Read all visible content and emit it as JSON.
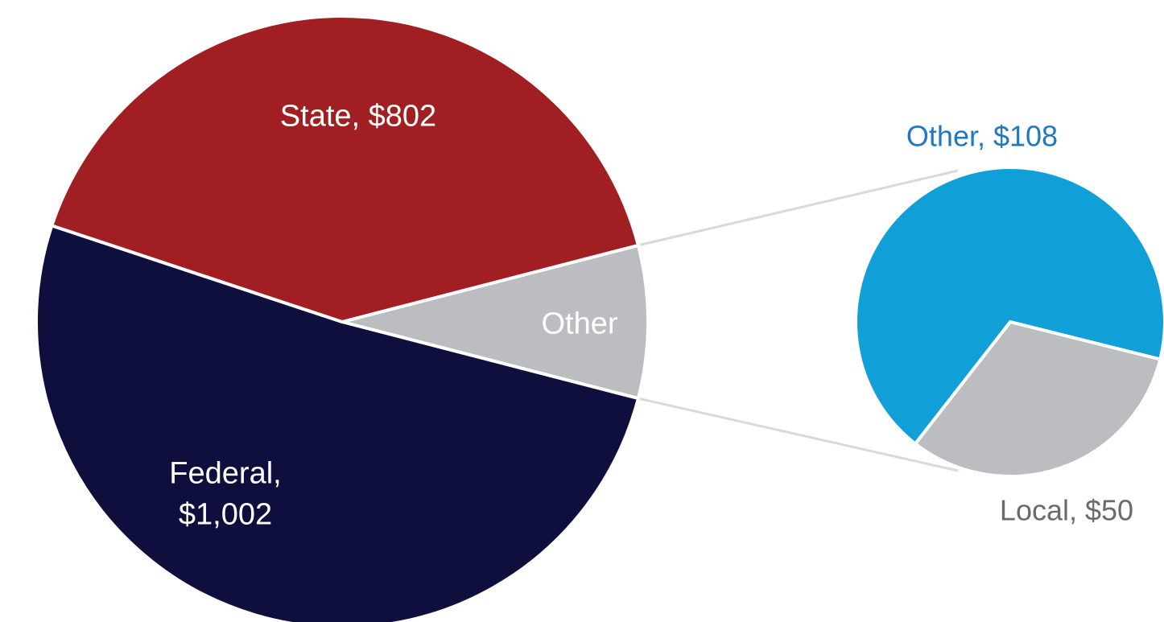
{
  "chart_data": {
    "type": "pie-of-pie",
    "labels": [
      "State, $802",
      "Federal, $1,002",
      "Other"
    ],
    "values": [
      802,
      1002,
      158
    ],
    "colors": [
      "#a11f22",
      "#0f0f3e",
      "#bcbdc0"
    ],
    "label_colors": [
      "#ffffff",
      "#ffffff",
      "#ffffff"
    ],
    "secondary": {
      "labels": [
        "Other, $108",
        "Local, $50"
      ],
      "values": [
        108,
        50
      ],
      "colors": [
        "#119fd8",
        "#bcbdc0"
      ],
      "label_colors": [
        "#1f78c1",
        "#6a6a6a"
      ]
    }
  }
}
